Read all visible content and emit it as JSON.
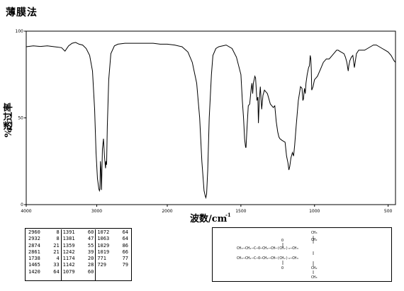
{
  "title": "薄膜法",
  "chart_data": {
    "type": "line",
    "xlabel": "波数/cm",
    "xlabel_superscript": "-1",
    "ylabel": "透过率",
    "ylabel_prefix": "%",
    "x_ticks": [
      "4000",
      "3000",
      "2000",
      "1500",
      "1000",
      "500"
    ],
    "y_ticks": [
      "100",
      "50",
      "0"
    ],
    "y_range": [
      0,
      100
    ],
    "line_color": "#000000",
    "spectrum": [
      [
        4000,
        91
      ],
      [
        3900,
        91.5
      ],
      [
        3800,
        91.2
      ],
      [
        3700,
        91.5
      ],
      [
        3600,
        91
      ],
      [
        3500,
        90.5
      ],
      [
        3450,
        88.5
      ],
      [
        3400,
        91.5
      ],
      [
        3350,
        93
      ],
      [
        3300,
        93.5
      ],
      [
        3250,
        92.5
      ],
      [
        3200,
        92
      ],
      [
        3150,
        90
      ],
      [
        3100,
        86
      ],
      [
        3060,
        77
      ],
      [
        3030,
        55
      ],
      [
        3010,
        30
      ],
      [
        2990,
        15
      ],
      [
        2970,
        9
      ],
      [
        2962,
        8
      ],
      [
        2955,
        9
      ],
      [
        2948,
        25
      ],
      [
        2940,
        20
      ],
      [
        2933,
        8.5
      ],
      [
        2920,
        32
      ],
      [
        2905,
        38
      ],
      [
        2890,
        28
      ],
      [
        2880,
        23
      ],
      [
        2875,
        21
      ],
      [
        2870,
        25
      ],
      [
        2860,
        23
      ],
      [
        2850,
        45
      ],
      [
        2830,
        72
      ],
      [
        2800,
        87
      ],
      [
        2750,
        91.5
      ],
      [
        2700,
        92.5
      ],
      [
        2600,
        93
      ],
      [
        2500,
        93
      ],
      [
        2400,
        93
      ],
      [
        2300,
        93
      ],
      [
        2200,
        93
      ],
      [
        2100,
        92.5
      ],
      [
        2000,
        92.5
      ],
      [
        1950,
        92
      ],
      [
        1900,
        91
      ],
      [
        1860,
        88
      ],
      [
        1830,
        82
      ],
      [
        1800,
        70
      ],
      [
        1780,
        50
      ],
      [
        1765,
        25
      ],
      [
        1750,
        8
      ],
      [
        1742,
        5
      ],
      [
        1738,
        4
      ],
      [
        1733,
        6
      ],
      [
        1725,
        20
      ],
      [
        1715,
        50
      ],
      [
        1700,
        75
      ],
      [
        1690,
        86
      ],
      [
        1670,
        90
      ],
      [
        1650,
        91
      ],
      [
        1600,
        92
      ],
      [
        1560,
        90
      ],
      [
        1530,
        85
      ],
      [
        1500,
        75
      ],
      [
        1490,
        60
      ],
      [
        1482,
        50
      ],
      [
        1475,
        38
      ],
      [
        1468,
        33
      ],
      [
        1465,
        33
      ],
      [
        1458,
        45
      ],
      [
        1450,
        57
      ],
      [
        1440,
        58
      ],
      [
        1430,
        67
      ],
      [
        1425,
        70
      ],
      [
        1420,
        64
      ],
      [
        1415,
        70
      ],
      [
        1405,
        74
      ],
      [
        1400,
        73
      ],
      [
        1391,
        60
      ],
      [
        1385,
        62
      ],
      [
        1381,
        47
      ],
      [
        1375,
        60
      ],
      [
        1368,
        68
      ],
      [
        1359,
        55
      ],
      [
        1350,
        63
      ],
      [
        1340,
        66
      ],
      [
        1320,
        64
      ],
      [
        1300,
        58
      ],
      [
        1280,
        56
      ],
      [
        1270,
        57
      ],
      [
        1260,
        48
      ],
      [
        1250,
        42
      ],
      [
        1242,
        39
      ],
      [
        1235,
        38
      ],
      [
        1220,
        37
      ],
      [
        1200,
        36
      ],
      [
        1190,
        28
      ],
      [
        1180,
        24
      ],
      [
        1174,
        20
      ],
      [
        1168,
        22
      ],
      [
        1160,
        27
      ],
      [
        1150,
        30
      ],
      [
        1142,
        28
      ],
      [
        1135,
        34
      ],
      [
        1125,
        45
      ],
      [
        1110,
        60
      ],
      [
        1095,
        68
      ],
      [
        1085,
        67
      ],
      [
        1079,
        60
      ],
      [
        1075,
        61
      ],
      [
        1072,
        64
      ],
      [
        1068,
        67
      ],
      [
        1063,
        64
      ],
      [
        1058,
        70
      ],
      [
        1050,
        75
      ],
      [
        1040,
        79
      ],
      [
        1035,
        80
      ],
      [
        1029,
        86
      ],
      [
        1025,
        84
      ],
      [
        1022,
        78
      ],
      [
        1019,
        66
      ],
      [
        1010,
        68
      ],
      [
        1000,
        72
      ],
      [
        990,
        73
      ],
      [
        980,
        74
      ],
      [
        970,
        76
      ],
      [
        960,
        78
      ],
      [
        940,
        82
      ],
      [
        920,
        84
      ],
      [
        900,
        84
      ],
      [
        880,
        86
      ],
      [
        860,
        88
      ],
      [
        850,
        89
      ],
      [
        840,
        89
      ],
      [
        820,
        88
      ],
      [
        800,
        87
      ],
      [
        790,
        85
      ],
      [
        780,
        82
      ],
      [
        775,
        79
      ],
      [
        771,
        77
      ],
      [
        767,
        80
      ],
      [
        760,
        83
      ],
      [
        750,
        85
      ],
      [
        740,
        86
      ],
      [
        735,
        83
      ],
      [
        729,
        79
      ],
      [
        724,
        82
      ],
      [
        715,
        87
      ],
      [
        700,
        89
      ],
      [
        680,
        89
      ],
      [
        660,
        89
      ],
      [
        640,
        90
      ],
      [
        620,
        91
      ],
      [
        600,
        92
      ],
      [
        580,
        92
      ],
      [
        560,
        91
      ],
      [
        540,
        90
      ],
      [
        520,
        89
      ],
      [
        500,
        88
      ],
      [
        480,
        86
      ],
      [
        460,
        83
      ],
      [
        450,
        82
      ]
    ]
  },
  "peak_table": {
    "columns": [
      [
        [
          "2960",
          "8"
        ],
        [
          "2932",
          "8"
        ],
        [
          "2874",
          "21"
        ],
        [
          "2861",
          "21"
        ],
        [
          "1738",
          "4"
        ],
        [
          "1465",
          "33"
        ],
        [
          "1420",
          "64"
        ]
      ],
      [
        [
          "1391",
          "60"
        ],
        [
          "1381",
          "47"
        ],
        [
          "1359",
          "55"
        ],
        [
          "1242",
          "39"
        ],
        [
          "1174",
          "20"
        ],
        [
          "1142",
          "28"
        ],
        [
          "1079",
          "60"
        ]
      ],
      [
        [
          "1072",
          "64"
        ],
        [
          "1063",
          "64"
        ],
        [
          "1029",
          "86"
        ],
        [
          "1019",
          "66"
        ],
        [
          "771",
          "77"
        ],
        [
          "729",
          "79"
        ],
        [
          "",
          ""
        ]
      ]
    ]
  },
  "structure": {
    "top_substituent": "CH₃",
    "bottom_substituent": "CH₃",
    "row1": [
      "CH₃",
      "CH₂",
      "C",
      "O",
      "CH₂",
      "CH",
      "CH₂",
      "CH₂",
      "CH₂",
      "CH₃"
    ],
    "row2": [
      "CH₃",
      "CH₂",
      "C",
      "O",
      "CH₂",
      "CH",
      "CH₂",
      "CH₂",
      "CH₂",
      "CH₃"
    ],
    "carbonyl": "O",
    "row1_formula": "CH₃—CH₂—C—O—CH₂—CH—(CH₂)₃—CH₃",
    "row2_formula": "CH₃—CH₂—C—O—CH₂—CH—(CH₂)₃—CH₃",
    "branch_label": "CH₂"
  }
}
